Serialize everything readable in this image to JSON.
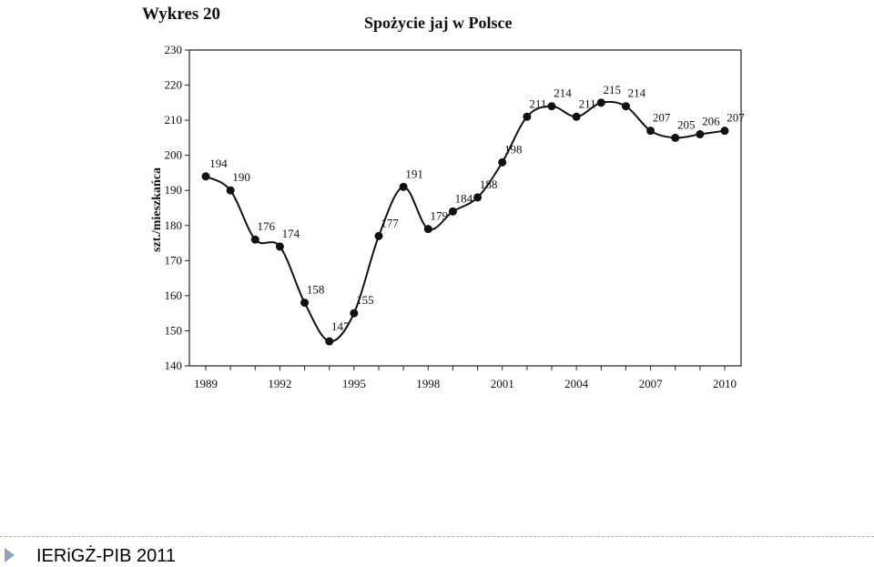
{
  "figure_label": "Wykres 20",
  "footer": {
    "text": "IERiGŻ-PIB 2011"
  },
  "chart_data": {
    "type": "line",
    "title": "Spożycie jaj w Polsce",
    "xlabel": "",
    "ylabel": "szt./mieszkańca",
    "x": [
      1989,
      1990,
      1991,
      1992,
      1993,
      1994,
      1995,
      1996,
      1997,
      1998,
      1999,
      2000,
      2001,
      2002,
      2003,
      2004,
      2005,
      2006,
      2007,
      2008,
      2009,
      2010
    ],
    "values": [
      194,
      190,
      176,
      174,
      158,
      147,
      155,
      177,
      191,
      179,
      184,
      188,
      198,
      211,
      214,
      211,
      215,
      214,
      207,
      205,
      206,
      207
    ],
    "data_labels": [
      "194",
      "190",
      "176",
      "174",
      "158",
      "147",
      "155",
      "177",
      "191",
      "179",
      "184",
      "188",
      "198",
      "211",
      "214",
      "211",
      "215",
      "214",
      "207",
      "205",
      "206",
      "207"
    ],
    "xlim": [
      1989,
      2010
    ],
    "ylim": [
      140,
      230
    ],
    "x_ticks": [
      "1989",
      "1992",
      "1995",
      "1998",
      "2001",
      "2004",
      "2007",
      "2010"
    ],
    "y_ticks": [
      "140",
      "150",
      "160",
      "170",
      "180",
      "190",
      "200",
      "210",
      "220",
      "230"
    ],
    "grid": false,
    "legend": "none"
  }
}
